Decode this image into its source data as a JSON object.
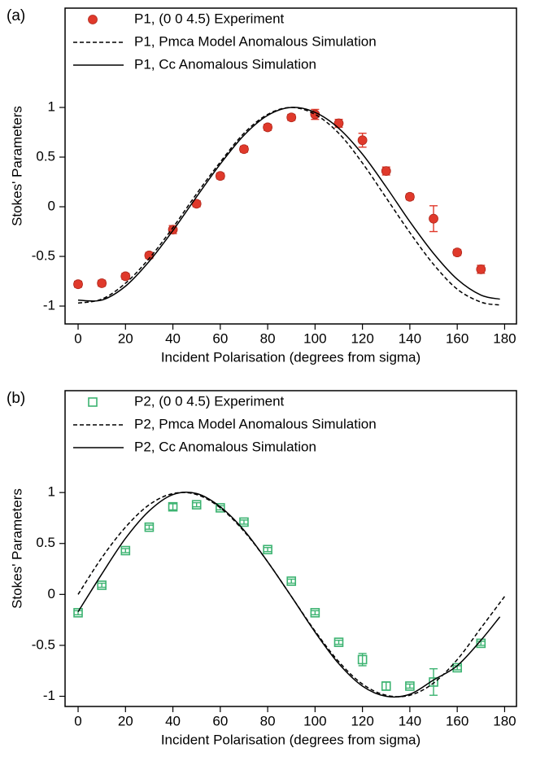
{
  "chart_data": [
    {
      "type": "line",
      "panel_label": "(a)",
      "xlabel": "Incident Polarisation (degrees from sigma)",
      "ylabel": "Stokes' Parameters",
      "xlim": [
        -5.5,
        185
      ],
      "ylim": [
        -1.18,
        2.0
      ],
      "xticks": [
        0,
        20,
        40,
        60,
        80,
        100,
        120,
        140,
        160,
        180
      ],
      "yticks": [
        -1,
        -0.5,
        0,
        0.5,
        1
      ],
      "legend": "upper left",
      "series": [
        {
          "name": "P1, (0 0 4.5) Experiment",
          "color": "#e0392b",
          "style": "markers",
          "marker": "circle",
          "x": [
            0,
            10,
            20,
            30,
            40,
            50,
            60,
            70,
            80,
            90,
            100,
            110,
            120,
            130,
            140,
            150,
            160,
            170
          ],
          "values": [
            -0.78,
            -0.77,
            -0.7,
            -0.49,
            -0.23,
            0.03,
            0.31,
            0.58,
            0.8,
            0.9,
            0.93,
            0.84,
            0.67,
            0.36,
            0.1,
            -0.12,
            -0.46,
            -0.63
          ],
          "errors": [
            0.03,
            0.03,
            0.03,
            0.03,
            0.04,
            0.03,
            0.03,
            0.03,
            0.03,
            0.03,
            0.05,
            0.04,
            0.07,
            0.04,
            0.03,
            0.13,
            0.03,
            0.04
          ]
        },
        {
          "name": "P1, Pmca Model Anomalous Simulation",
          "color": "#000000",
          "style": "dashed",
          "x": [
            0,
            10,
            20,
            30,
            40,
            50,
            60,
            70,
            80,
            90,
            100,
            110,
            120,
            130,
            140,
            150,
            160,
            170,
            178
          ],
          "values": [
            -0.97,
            -0.93,
            -0.77,
            -0.52,
            -0.21,
            0.13,
            0.45,
            0.74,
            0.93,
            1.0,
            0.93,
            0.74,
            0.44,
            0.09,
            -0.26,
            -0.58,
            -0.83,
            -0.96,
            -0.99
          ]
        },
        {
          "name": "P1, Cc Anomalous Simulation",
          "color": "#000000",
          "style": "solid",
          "x": [
            0,
            10,
            20,
            30,
            40,
            50,
            60,
            70,
            80,
            90,
            100,
            110,
            120,
            130,
            140,
            150,
            160,
            170,
            178
          ],
          "values": [
            -0.94,
            -0.94,
            -0.8,
            -0.55,
            -0.24,
            0.1,
            0.43,
            0.72,
            0.92,
            1.0,
            0.95,
            0.79,
            0.53,
            0.2,
            -0.15,
            -0.47,
            -0.73,
            -0.89,
            -0.93
          ]
        }
      ]
    },
    {
      "type": "line",
      "panel_label": "(b)",
      "xlabel": "Incident Polarisation (degrees from sigma)",
      "ylabel": "Stokes' Parameters",
      "xlim": [
        -5.5,
        185
      ],
      "ylim": [
        -1.1,
        2.0
      ],
      "xticks": [
        0,
        20,
        40,
        60,
        80,
        100,
        120,
        140,
        160,
        180
      ],
      "yticks": [
        -1,
        -0.5,
        0,
        0.5,
        1
      ],
      "legend": "upper left",
      "series": [
        {
          "name": "P2, (0 0 4.5) Experiment",
          "color": "#3cb371",
          "style": "markers",
          "marker": "square",
          "x": [
            0,
            10,
            20,
            30,
            40,
            50,
            60,
            70,
            80,
            90,
            100,
            110,
            120,
            130,
            140,
            150,
            160,
            170
          ],
          "values": [
            -0.18,
            0.09,
            0.43,
            0.66,
            0.86,
            0.88,
            0.85,
            0.71,
            0.44,
            0.13,
            -0.18,
            -0.47,
            -0.64,
            -0.9,
            -0.9,
            -0.86,
            -0.72,
            -0.48
          ],
          "errors": [
            0.02,
            0.02,
            0.02,
            0.02,
            0.03,
            0.02,
            0.02,
            0.02,
            0.02,
            0.02,
            0.02,
            0.02,
            0.06,
            0.04,
            0.02,
            0.13,
            0.02,
            0.02
          ]
        },
        {
          "name": "P2, Pmca Model Anomalous Simulation",
          "color": "#000000",
          "style": "dashed",
          "x": [
            0,
            10,
            20,
            30,
            40,
            50,
            60,
            70,
            80,
            90,
            100,
            110,
            120,
            130,
            140,
            150,
            160,
            170,
            180
          ],
          "values": [
            0.0,
            0.36,
            0.66,
            0.88,
            0.99,
            0.98,
            0.85,
            0.62,
            0.32,
            -0.02,
            -0.36,
            -0.66,
            -0.88,
            -0.99,
            -0.99,
            -0.87,
            -0.64,
            -0.33,
            -0.02
          ]
        },
        {
          "name": "P2, Cc Anomalous Simulation",
          "color": "#000000",
          "style": "solid",
          "x": [
            0,
            10,
            20,
            30,
            40,
            50,
            60,
            70,
            80,
            90,
            100,
            110,
            120,
            130,
            140,
            150,
            160,
            170,
            178
          ],
          "values": [
            -0.17,
            0.2,
            0.55,
            0.82,
            0.98,
            0.99,
            0.86,
            0.63,
            0.32,
            -0.02,
            -0.37,
            -0.68,
            -0.9,
            -1.0,
            -0.98,
            -0.84,
            -0.7,
            -0.45,
            -0.22
          ]
        }
      ]
    }
  ]
}
